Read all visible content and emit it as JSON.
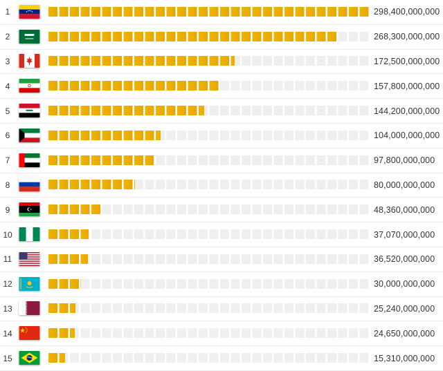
{
  "chart_data": {
    "type": "bar",
    "orientation": "horizontal",
    "ranks": [
      "1",
      "2",
      "3",
      "4",
      "5",
      "6",
      "7",
      "8",
      "9",
      "10",
      "11",
      "12",
      "13",
      "14",
      "15"
    ],
    "flags": [
      "venezuela-flag-icon",
      "saudi-arabia-flag-icon",
      "canada-flag-icon",
      "iran-flag-icon",
      "iraq-flag-icon",
      "kuwait-flag-icon",
      "uae-flag-icon",
      "russia-flag-icon",
      "libya-flag-icon",
      "nigeria-flag-icon",
      "usa-flag-icon",
      "kazakhstan-flag-icon",
      "qatar-flag-icon",
      "china-flag-icon",
      "brazil-flag-icon"
    ],
    "values": [
      298400000000,
      268300000000,
      172500000000,
      157800000000,
      144200000000,
      104000000000,
      97800000000,
      80000000000,
      48360000000,
      37070000000,
      36520000000,
      30000000000,
      25240000000,
      24650000000,
      15310000000
    ],
    "value_labels": [
      "298,400,000,000",
      "268,300,000,000",
      "172,500,000,000",
      "157,800,000,000",
      "144,200,000,000",
      "104,000,000,000",
      "97,800,000,000",
      "80,000,000,000",
      "48,360,000,000",
      "37,070,000,000",
      "36,520,000,000",
      "30,000,000,000",
      "25,240,000,000",
      "24,650,000,000",
      "15,310,000,000"
    ],
    "xlim": [
      0,
      298400000000
    ],
    "grid": false,
    "legend": "none",
    "colors": {
      "bar": "#f0b400",
      "track": "#efefef",
      "divider": "#ececec"
    }
  }
}
